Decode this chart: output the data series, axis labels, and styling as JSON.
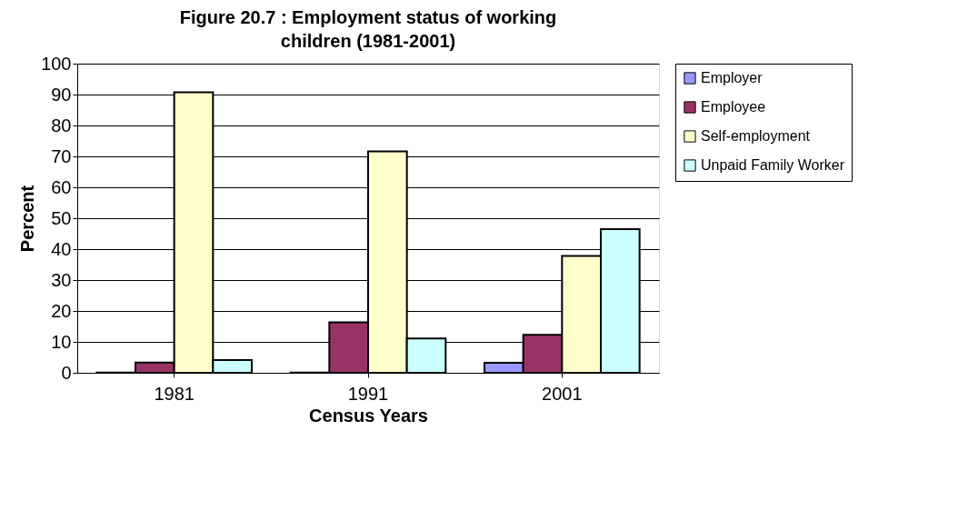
{
  "chart_data": {
    "type": "bar",
    "title": "Figure 20.7 :  Employment status of working children (1981-2001)",
    "xlabel": "Census Years",
    "ylabel": "Percent",
    "categories": [
      "1981",
      "1991",
      "2001"
    ],
    "series": [
      {
        "name": "Employer",
        "color": "#9999ff",
        "values": [
          0.1,
          0.1,
          3.2
        ]
      },
      {
        "name": "Employee",
        "color": "#993366",
        "values": [
          3.3,
          16.3,
          12.3
        ]
      },
      {
        "name": "Self-employment",
        "color": "#ffffcc",
        "values": [
          90.7,
          71.6,
          37.8
        ]
      },
      {
        "name": "Unpaid Family Worker",
        "color": "#ccffff",
        "values": [
          4.1,
          11.1,
          46.5
        ]
      }
    ],
    "ylim": [
      0,
      100
    ],
    "yticks": [
      0,
      10,
      20,
      30,
      40,
      50,
      60,
      70,
      80,
      90,
      100
    ],
    "grid": "y",
    "legend": "right"
  }
}
